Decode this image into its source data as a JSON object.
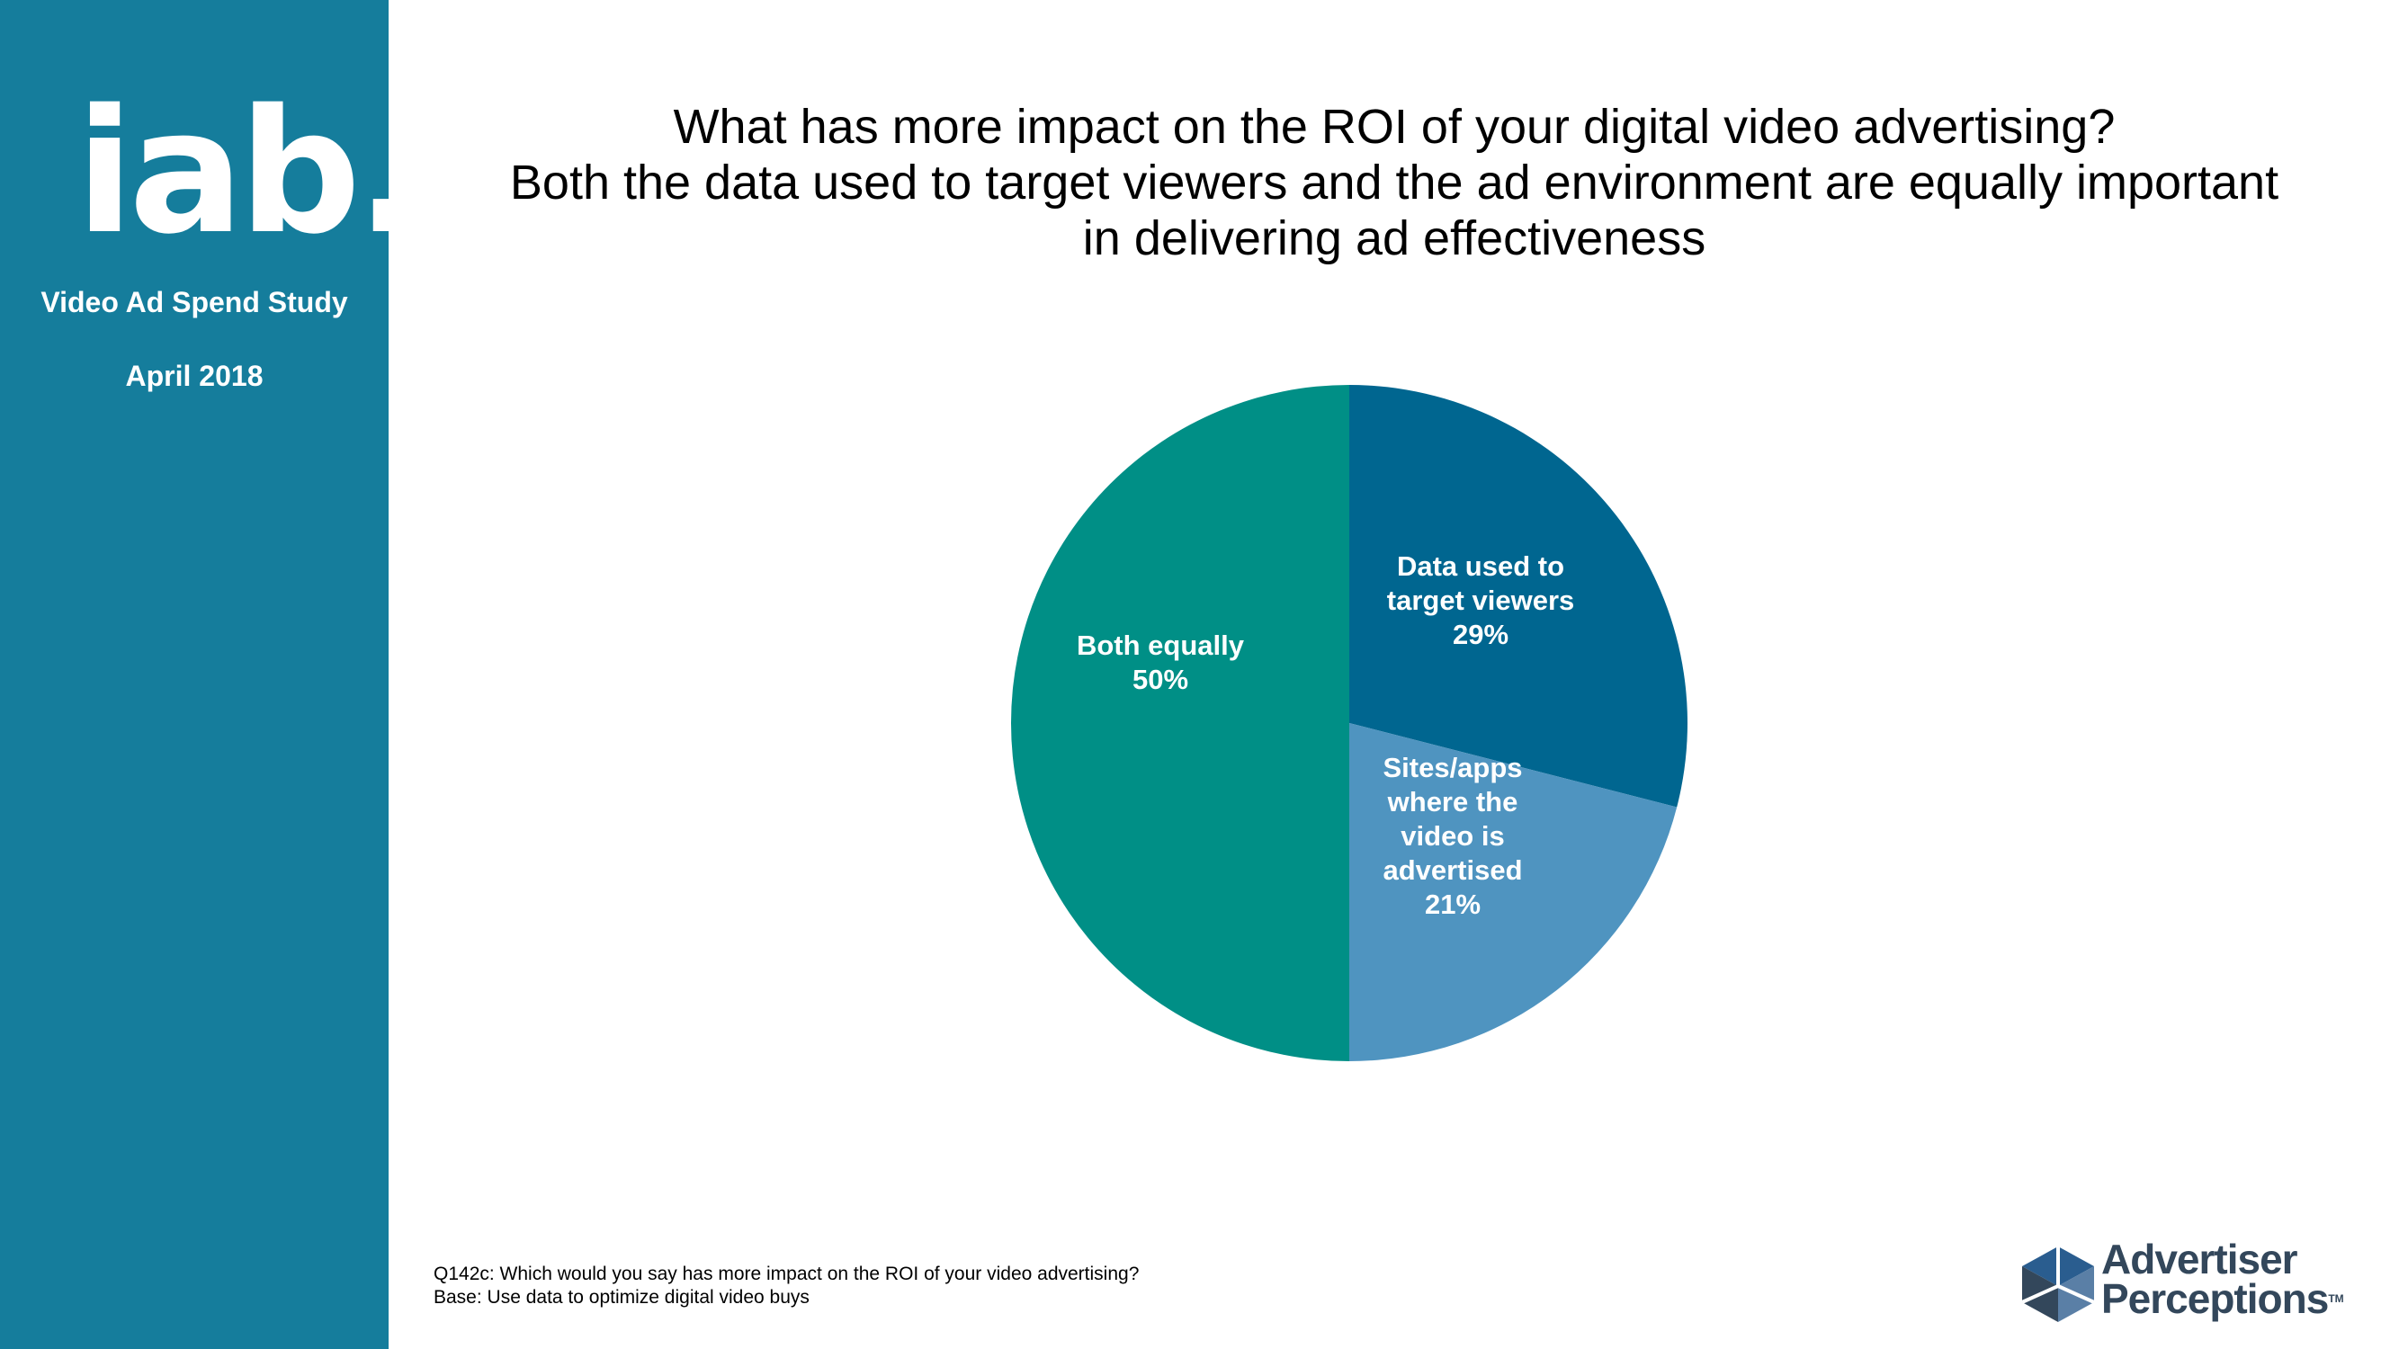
{
  "sidebar": {
    "logo_text": "iab.",
    "subtitle": "Video Ad Spend Study",
    "date": "April 2018"
  },
  "title": {
    "line1": "What has more impact on the ROI of your digital video advertising?",
    "line2": "Both the data used to target viewers and the ad environment are equally important",
    "line3": "in delivering ad effectiveness"
  },
  "chart_data": {
    "type": "pie",
    "title": "What has more impact on the ROI of your digital video advertising? Both the data used to target viewers and the ad environment are equally important in delivering ad effectiveness",
    "slices": [
      {
        "label_lines": [
          "Data used to",
          "target viewers"
        ],
        "value": 29,
        "value_label": "29%",
        "color": "#006690"
      },
      {
        "label_lines": [
          "Sites/apps",
          "where the",
          "video is",
          "advertised"
        ],
        "value": 21,
        "value_label": "21%",
        "color": "#4f94c0"
      },
      {
        "label_lines": [
          "Both equally"
        ],
        "value": 50,
        "value_label": "50%",
        "color": "#008f86"
      }
    ],
    "start_angle": "12 o'clock",
    "direction": "clockwise",
    "legend": "none"
  },
  "footnote": {
    "line1": "Q142c: Which would you say has more impact on the ROI of your video advertising?",
    "line2": "Base: Use data to optimize digital video buys"
  },
  "brand": {
    "line1": "Advertiser",
    "line2": "Perceptions",
    "tm": "TM",
    "cube_colors": [
      "#2a5d8f",
      "#33475b",
      "#5a7fa6"
    ]
  },
  "colors": {
    "sidebar_bg": "#157d9c",
    "text": "#000000"
  }
}
